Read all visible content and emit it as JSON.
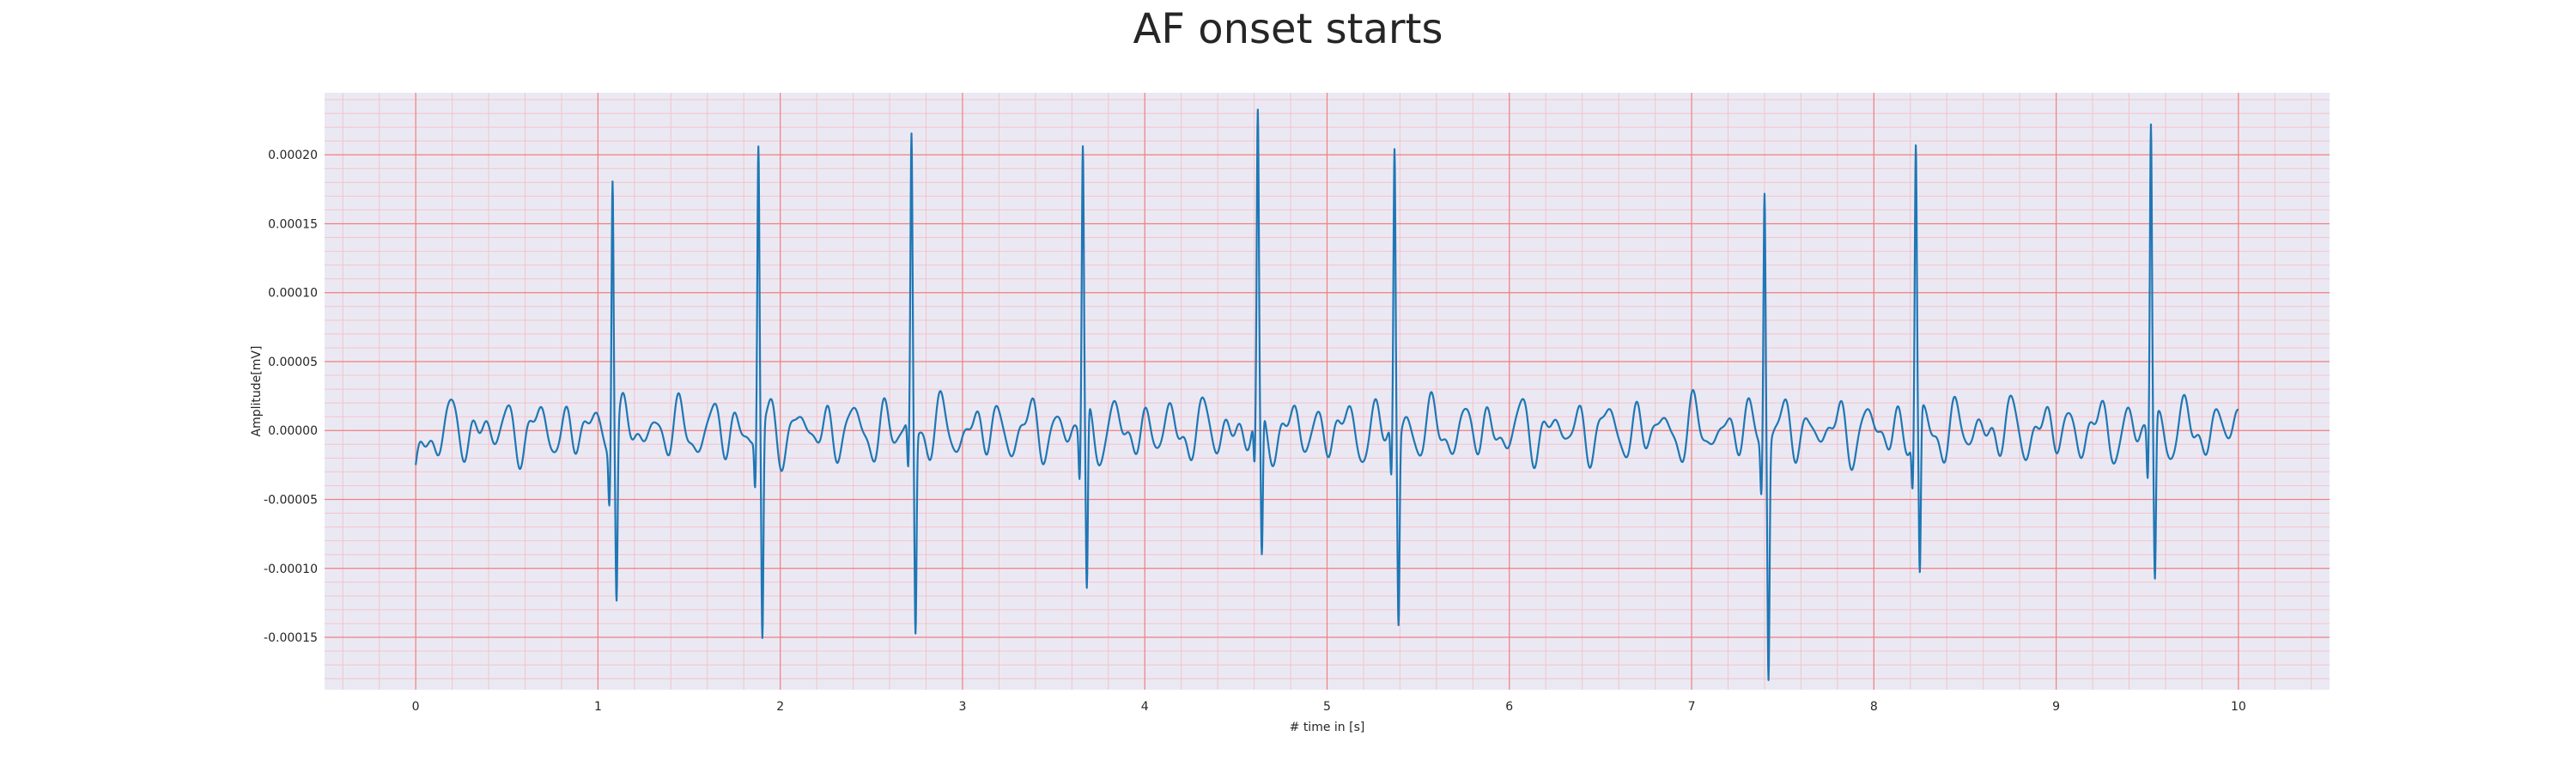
{
  "chart_data": {
    "type": "line",
    "title": "AF onset starts",
    "xlabel": "# time in [s]",
    "ylabel": "Amplitude[mV]",
    "xlim": [
      -0.5,
      10.5
    ],
    "ylim": [
      -0.000188,
      0.000245
    ],
    "xticks": [
      0,
      1,
      2,
      3,
      4,
      5,
      6,
      7,
      8,
      9,
      10
    ],
    "xtick_labels": [
      "0",
      "1",
      "2",
      "3",
      "4",
      "5",
      "6",
      "7",
      "8",
      "9",
      "10"
    ],
    "yticks": [
      -0.00015,
      -0.0001,
      -5e-05,
      0.0,
      5e-05,
      0.0001,
      0.00015,
      0.0002
    ],
    "ytick_labels": [
      "-0.00015",
      "-0.00010",
      "-0.00005",
      "0.00000",
      "0.00005",
      "0.00010",
      "0.00015",
      "0.00020"
    ],
    "grid": true,
    "series": [
      {
        "color": "#1f77b4",
        "r_peaks": [
          {
            "t": 1.08,
            "peak": 0.000203,
            "s": -0.000118
          },
          {
            "t": 1.88,
            "peak": 0.000208,
            "s": -0.000155
          },
          {
            "t": 2.72,
            "peak": 0.000209,
            "s": -0.000147
          },
          {
            "t": 3.66,
            "peak": 0.000205,
            "s": -0.00013
          },
          {
            "t": 4.62,
            "peak": 0.000213,
            "s": -0.000108
          },
          {
            "t": 5.37,
            "peak": 0.000207,
            "s": -0.000135
          },
          {
            "t": 7.4,
            "peak": 0.000188,
            "s": -0.000168
          },
          {
            "t": 8.23,
            "peak": 0.000205,
            "s": -0.000117
          },
          {
            "t": 9.52,
            "peak": 0.000227,
            "s": -0.000113
          }
        ],
        "baseline_start": -2.5e-05,
        "baseline_end": 1.5e-05,
        "fibrillation_amplitude": 2.5e-05
      }
    ],
    "colors": {
      "plot_background": "#eae9f3",
      "major_grid": "#f08080",
      "minor_grid": "#f5c2cc",
      "line": "#1f77b4"
    }
  }
}
